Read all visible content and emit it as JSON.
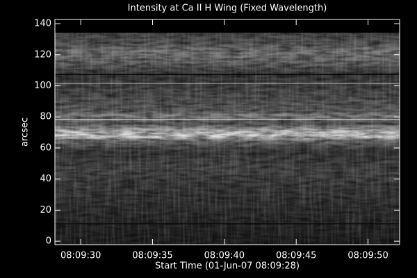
{
  "chart_data": {
    "type": "image",
    "title": "Intensity at Ca II H Wing (Fixed Wavelength)",
    "xlabel": "Start Time (01-Jun-07 08:09:28)",
    "ylabel": "arcsec",
    "xlim": [
      28.2,
      52.2
    ],
    "xticks": [
      {
        "value": 30,
        "label": "08:09:30"
      },
      {
        "value": 35,
        "label": "08:09:35"
      },
      {
        "value": 40,
        "label": "08:09:40"
      },
      {
        "value": 45,
        "label": "08:09:45"
      },
      {
        "value": 50,
        "label": "08:09:50"
      }
    ],
    "ylim": [
      -2.2,
      142.7
    ],
    "yticks": [
      0,
      20,
      40,
      60,
      80,
      100,
      120,
      140
    ]
  }
}
